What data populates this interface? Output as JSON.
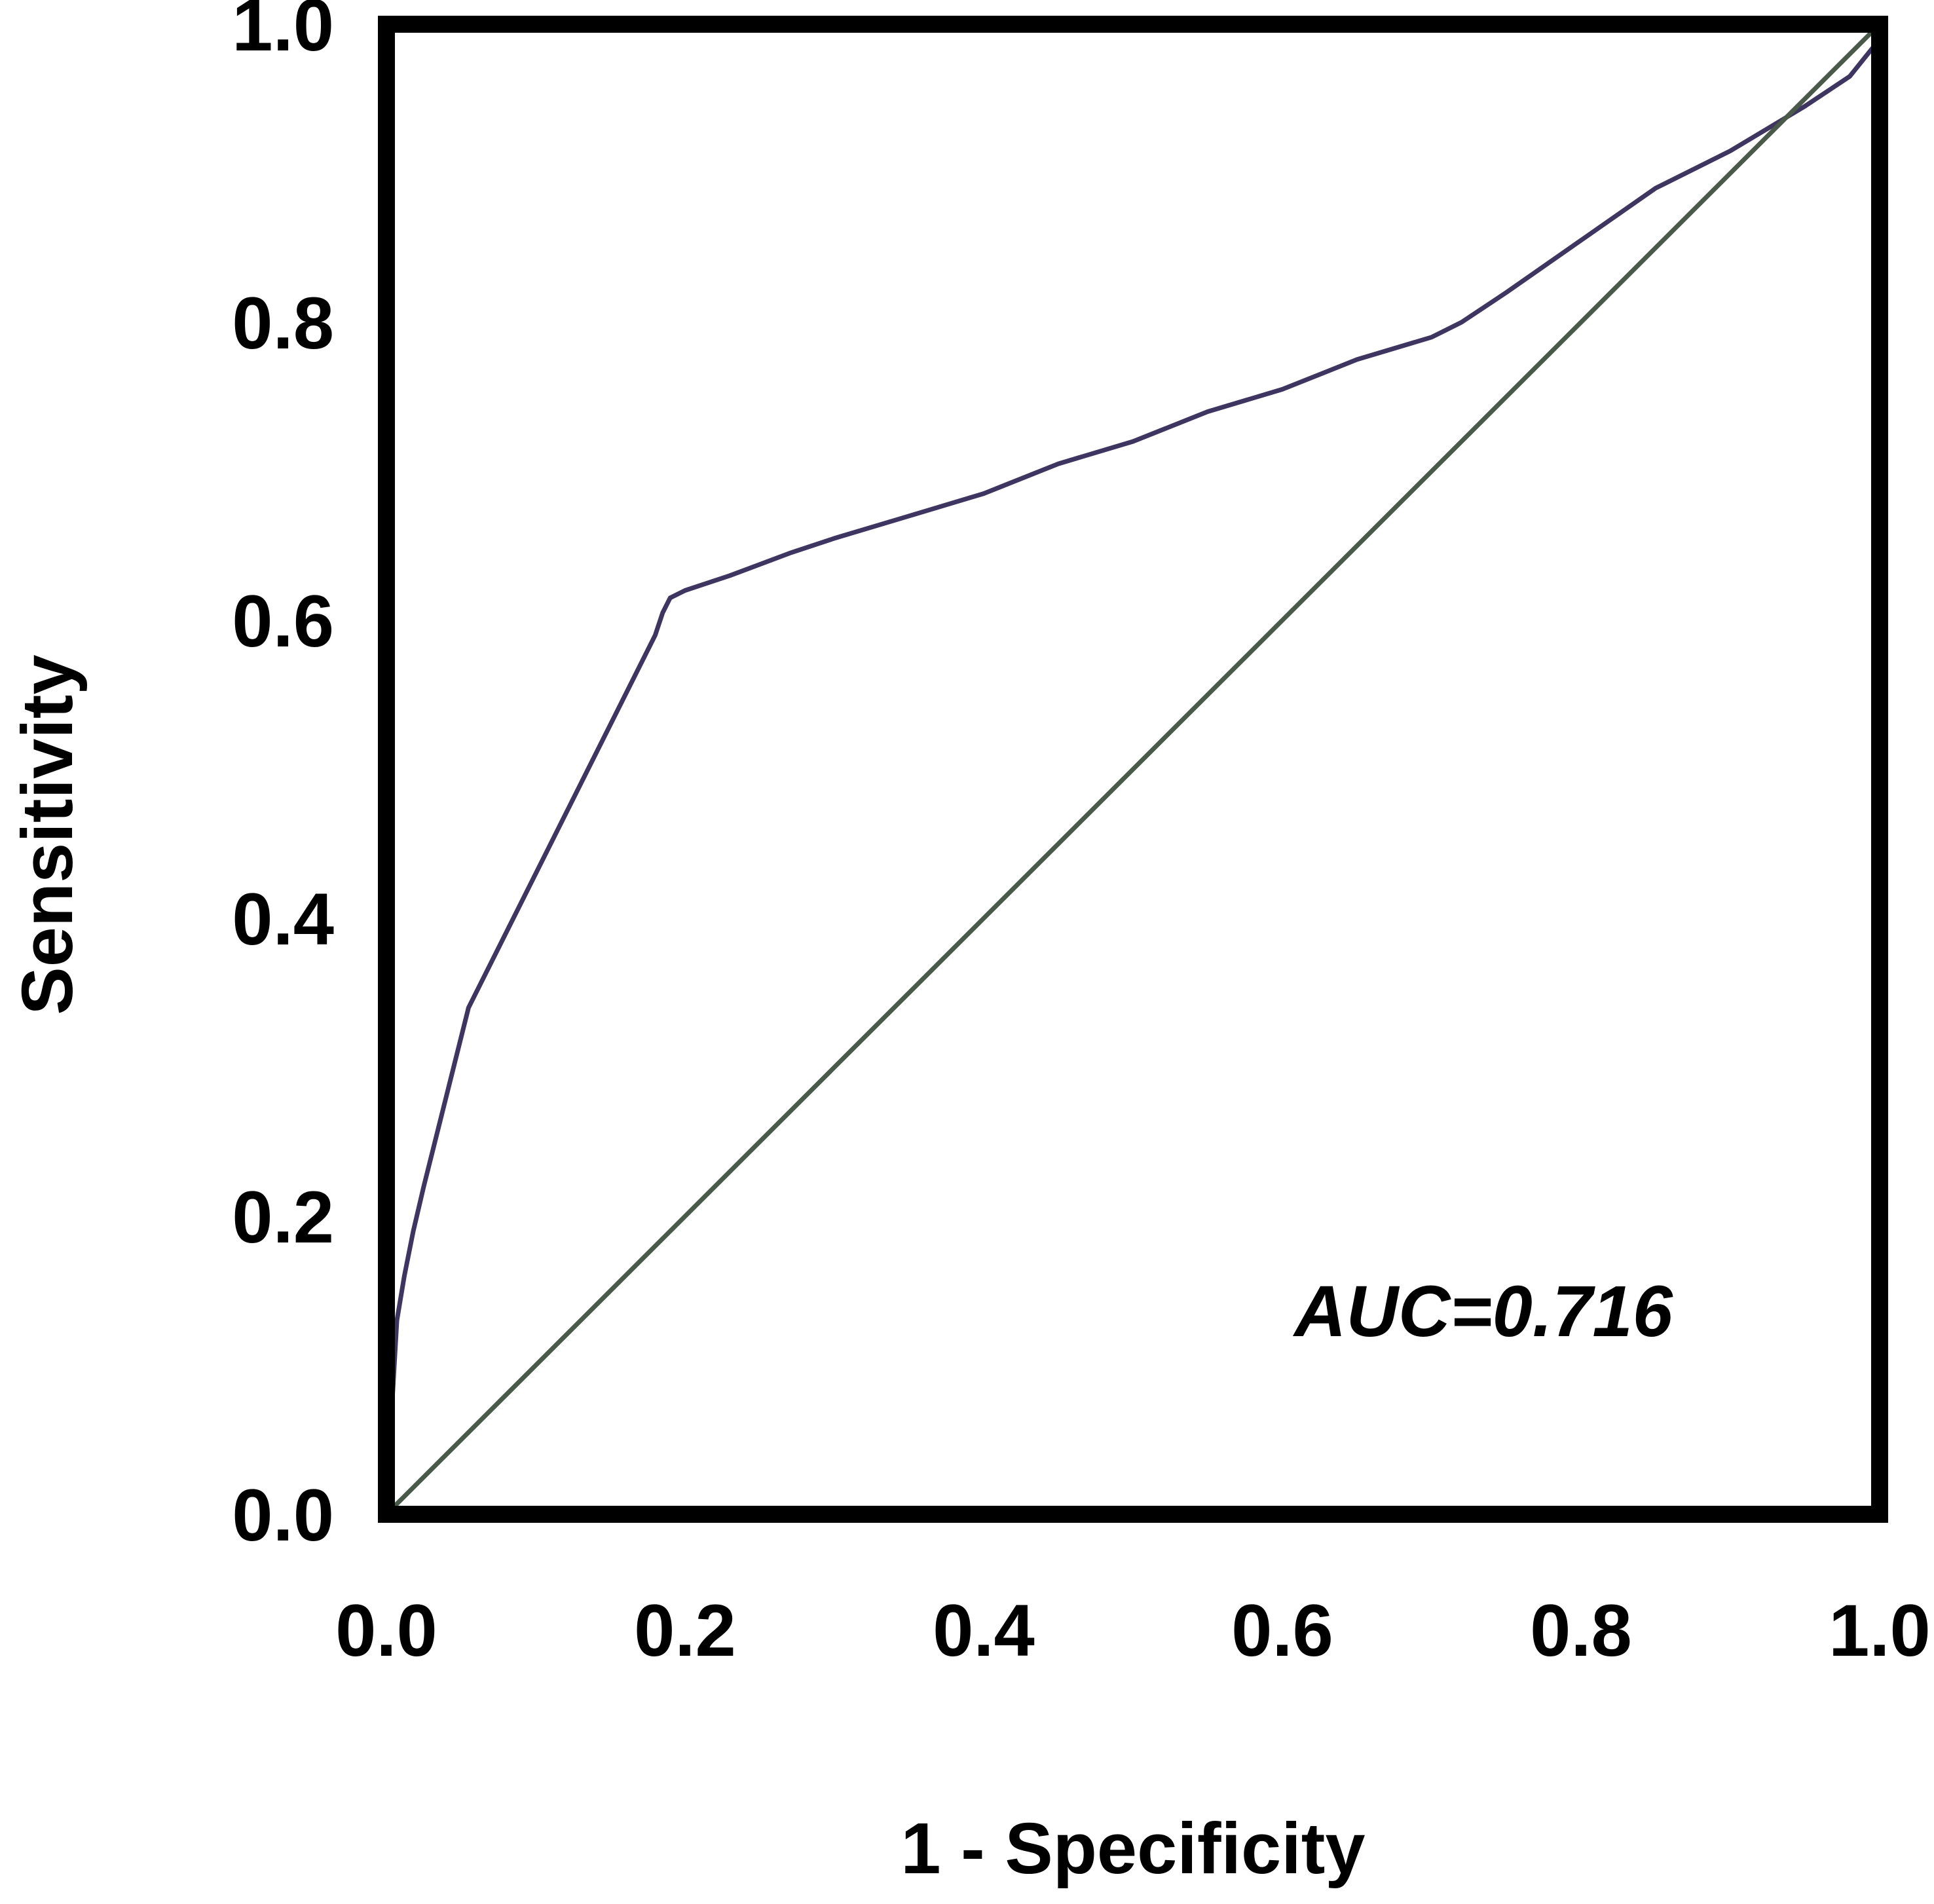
{
  "chart_data": {
    "type": "line",
    "xlabel": "1 - Specificity",
    "ylabel": "Sensitivity",
    "xlim": [
      0.0,
      1.0
    ],
    "ylim": [
      0.0,
      1.0
    ],
    "x_ticks": [
      "0.0",
      "0.2",
      "0.4",
      "0.6",
      "0.8",
      "1.0"
    ],
    "y_ticks": [
      "0.0",
      "0.2",
      "0.4",
      "0.6",
      "0.8",
      "1.0"
    ],
    "grid": false,
    "legend": "none",
    "annotation": "AUC=0.716",
    "series": [
      {
        "color": "#3e3560",
        "x": [
          0.0,
          0.003,
          0.007,
          0.012,
          0.018,
          0.025,
          0.035,
          0.045,
          0.055,
          0.07,
          0.09,
          0.11,
          0.13,
          0.15,
          0.17,
          0.18,
          0.185,
          0.19,
          0.2,
          0.23,
          0.27,
          0.3,
          0.35,
          0.4,
          0.45,
          0.5,
          0.55,
          0.6,
          0.65,
          0.7,
          0.72,
          0.75,
          0.8,
          0.85,
          0.9,
          0.95,
          0.98,
          1.0
        ],
        "y": [
          0.0,
          0.06,
          0.13,
          0.16,
          0.19,
          0.22,
          0.26,
          0.3,
          0.34,
          0.37,
          0.41,
          0.45,
          0.49,
          0.53,
          0.57,
          0.59,
          0.605,
          0.615,
          0.62,
          0.63,
          0.645,
          0.655,
          0.67,
          0.685,
          0.705,
          0.72,
          0.74,
          0.755,
          0.775,
          0.79,
          0.8,
          0.82,
          0.855,
          0.89,
          0.915,
          0.945,
          0.965,
          0.99
        ]
      },
      {
        "color": "#4a5a4a",
        "x": [
          0.0,
          1.0
        ],
        "y": [
          0.0,
          1.0
        ]
      }
    ]
  }
}
